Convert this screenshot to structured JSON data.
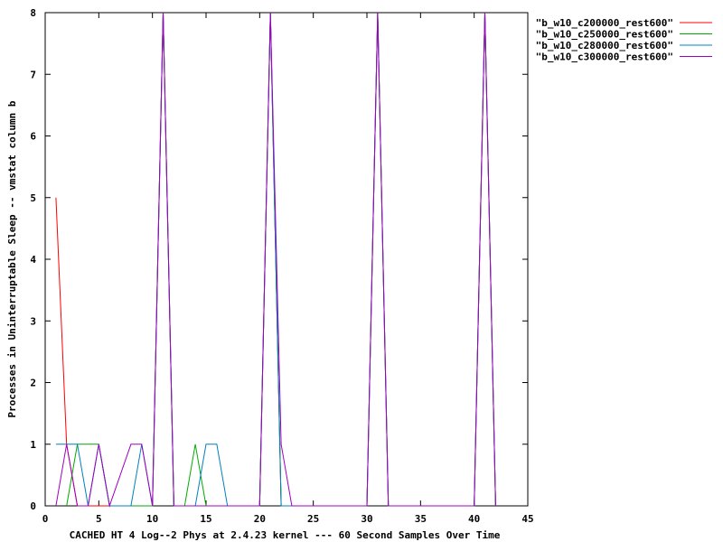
{
  "chart_data": {
    "type": "line",
    "xlabel": "CACHED HT 4 Log--2 Phys at 2.4.23 kernel --- 60 Second Samples Over Time",
    "ylabel": "Processes in Uninterruptable Sleep -- vmstat column b",
    "xlim": [
      0,
      45
    ],
    "ylim": [
      0,
      8
    ],
    "x_ticks": [
      0,
      5,
      10,
      15,
      20,
      25,
      30,
      35,
      40,
      45
    ],
    "y_ticks": [
      0,
      1,
      2,
      3,
      4,
      5,
      6,
      7,
      8
    ],
    "grid": false,
    "legend_position": "outside-top-right",
    "series": [
      {
        "name": "\"b_w10_c200000_rest600\"",
        "color": "#ff0000",
        "points": [
          [
            1,
            5
          ],
          [
            2,
            1
          ],
          [
            3,
            0
          ],
          [
            10,
            0
          ],
          [
            11,
            8
          ],
          [
            12,
            0
          ],
          [
            20,
            0
          ],
          [
            21,
            8
          ],
          [
            22,
            0
          ],
          [
            30,
            0
          ],
          [
            31,
            8
          ],
          [
            32,
            0
          ],
          [
            40,
            0
          ],
          [
            41,
            8
          ],
          [
            42,
            0
          ]
        ]
      },
      {
        "name": "\"b_w10_c250000_rest600\"",
        "color": "#00aa00",
        "points": [
          [
            2,
            0
          ],
          [
            3,
            1
          ],
          [
            4,
            1
          ],
          [
            5,
            1
          ],
          [
            6,
            0
          ],
          [
            10,
            0
          ],
          [
            11,
            8
          ],
          [
            12,
            0
          ],
          [
            13,
            0
          ],
          [
            14,
            1
          ],
          [
            15,
            0
          ],
          [
            20,
            0
          ],
          [
            21,
            8
          ],
          [
            22,
            0
          ],
          [
            30,
            0
          ],
          [
            31,
            8
          ],
          [
            32,
            0
          ],
          [
            40,
            0
          ],
          [
            41,
            8
          ],
          [
            42,
            0
          ]
        ]
      },
      {
        "name": "\"b_w10_c280000_rest600\"",
        "color": "#0080c0",
        "points": [
          [
            1,
            1
          ],
          [
            2,
            1
          ],
          [
            3,
            1
          ],
          [
            4,
            0
          ],
          [
            5,
            1
          ],
          [
            6,
            0
          ],
          [
            8,
            0
          ],
          [
            9,
            1
          ],
          [
            10,
            0
          ],
          [
            11,
            8
          ],
          [
            12,
            0
          ],
          [
            14,
            0
          ],
          [
            15,
            1
          ],
          [
            16,
            1
          ],
          [
            17,
            0
          ],
          [
            20,
            0
          ],
          [
            21,
            8
          ],
          [
            22,
            0
          ],
          [
            30,
            0
          ],
          [
            31,
            8
          ],
          [
            32,
            0
          ],
          [
            40,
            0
          ],
          [
            41,
            8
          ],
          [
            42,
            0
          ]
        ]
      },
      {
        "name": "\"b_w10_c300000_rest600\"",
        "color": "#a000c0",
        "points": [
          [
            1,
            0
          ],
          [
            2,
            1
          ],
          [
            3,
            0
          ],
          [
            4,
            0
          ],
          [
            5,
            1
          ],
          [
            6,
            0
          ],
          [
            8,
            1
          ],
          [
            9,
            1
          ],
          [
            10,
            0
          ],
          [
            11,
            8
          ],
          [
            12,
            0
          ],
          [
            20,
            0
          ],
          [
            21,
            8
          ],
          [
            22,
            1
          ],
          [
            23,
            0
          ],
          [
            30,
            0
          ],
          [
            31,
            8
          ],
          [
            32,
            0
          ],
          [
            40,
            0
          ],
          [
            41,
            8
          ],
          [
            42,
            0
          ]
        ]
      }
    ]
  }
}
